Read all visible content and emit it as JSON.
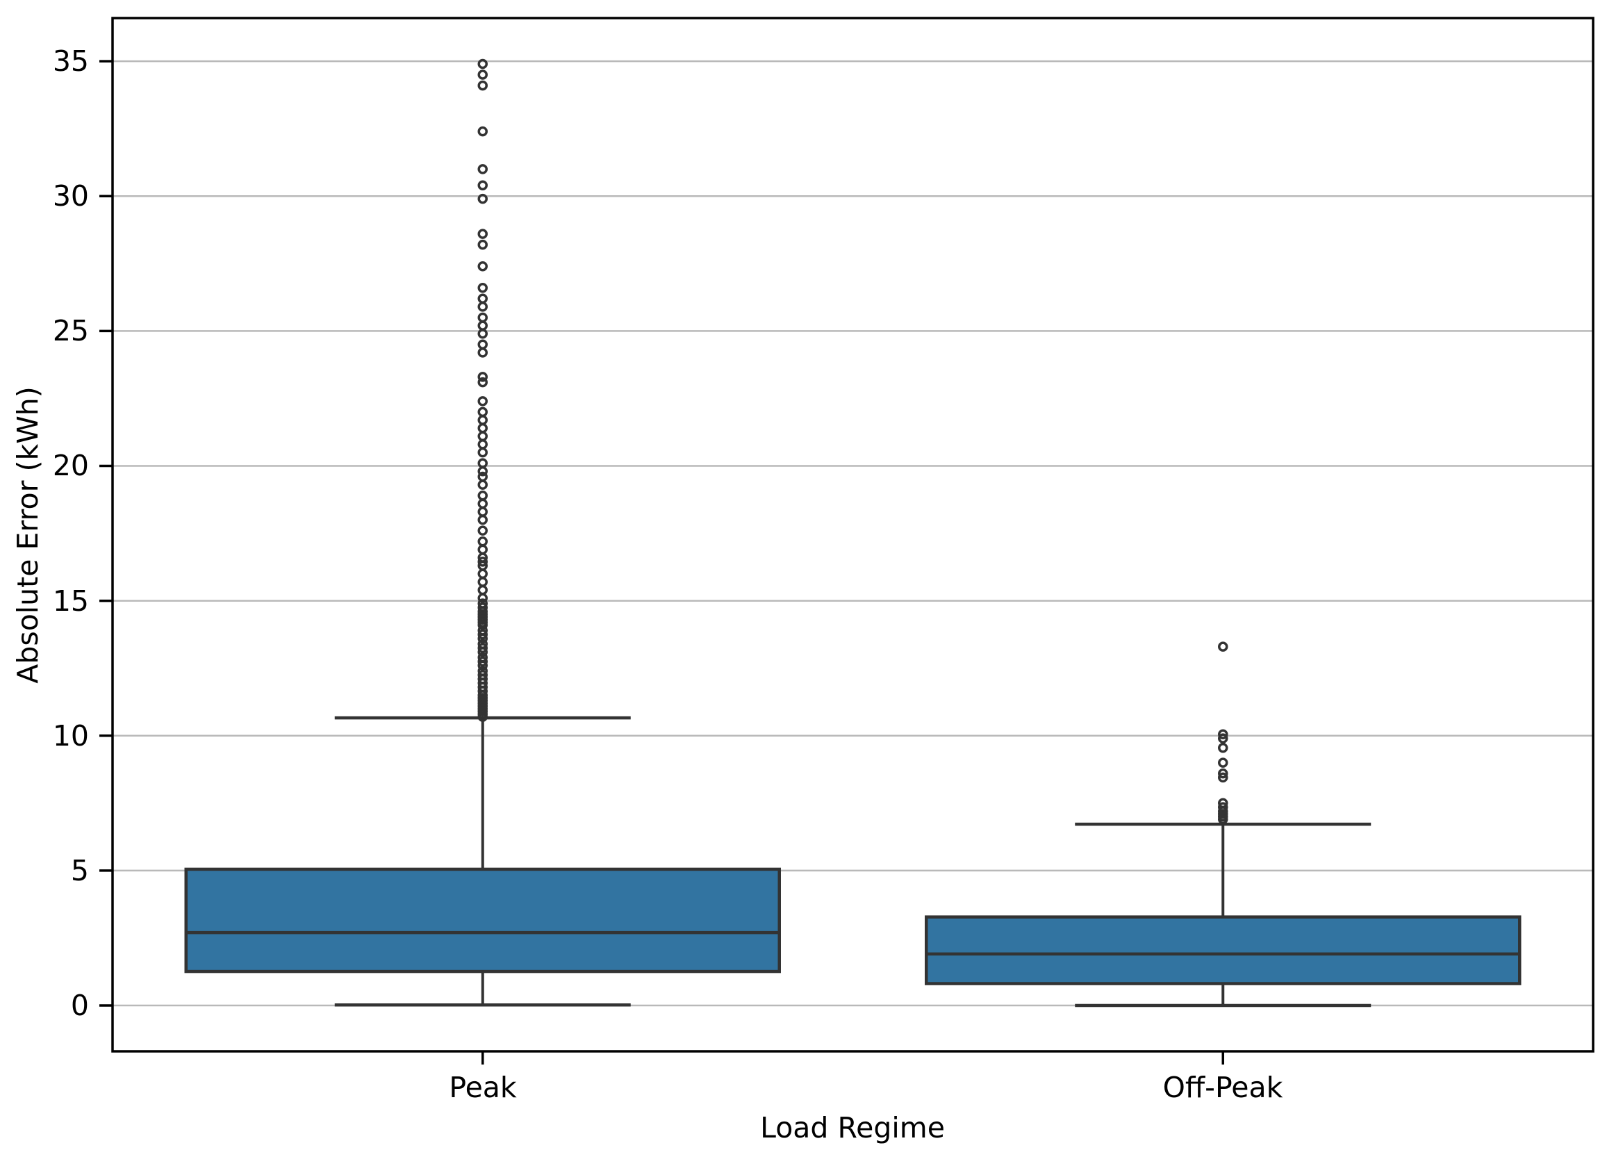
{
  "figure": {
    "background": "#ffffff"
  },
  "chart_data": {
    "type": "box",
    "title": "",
    "xlabel": "Load Regime",
    "ylabel": "Absolute Error (kWh)",
    "categories": [
      "Peak",
      "Off-Peak"
    ],
    "yticks": [
      0,
      5,
      10,
      15,
      20,
      25,
      30,
      35
    ],
    "ylim": [
      -1.7,
      36.6
    ],
    "grid": "horizontal-gridlines-on",
    "legend": "none",
    "box_fill_color": "#3274a1",
    "line_color": "#333333",
    "grid_color": "#b9b9b9",
    "axis_color": "#000000",
    "groups": [
      {
        "label": "Peak",
        "whisker_low": 0.02,
        "q1": 1.26,
        "median": 2.7,
        "q3": 5.05,
        "whisker_high": 10.66,
        "outliers": [
          34.9,
          34.5,
          34.1,
          32.4,
          31.0,
          30.4,
          29.9,
          28.6,
          28.2,
          27.4,
          26.6,
          26.2,
          25.9,
          25.5,
          25.2,
          24.9,
          24.5,
          24.2,
          23.3,
          23.1,
          22.4,
          22.0,
          21.7,
          21.4,
          21.1,
          20.8,
          20.5,
          20.1,
          19.8,
          19.6,
          19.3,
          18.9,
          18.6,
          18.3,
          18.0,
          17.6,
          17.2,
          16.9,
          16.6,
          16.45,
          16.3,
          16.0,
          15.7,
          15.4,
          15.1,
          14.9,
          14.75,
          14.6,
          14.5,
          14.4,
          14.3,
          14.2,
          14.1,
          13.9,
          13.75,
          13.6,
          13.4,
          13.25,
          13.1,
          12.9,
          12.75,
          12.6,
          12.4,
          12.25,
          12.1,
          11.95,
          11.8,
          11.65,
          11.5,
          11.4,
          11.3,
          11.2,
          11.1,
          11.0,
          10.9,
          10.8,
          10.7
        ]
      },
      {
        "label": "Off-Peak",
        "whisker_low": 0.0,
        "q1": 0.81,
        "median": 1.91,
        "q3": 3.28,
        "whisker_high": 6.72,
        "outliers": [
          13.3,
          10.05,
          9.9,
          9.55,
          9.0,
          8.6,
          8.45,
          7.5,
          7.35,
          7.2,
          7.1,
          7.0,
          6.9
        ]
      }
    ]
  }
}
